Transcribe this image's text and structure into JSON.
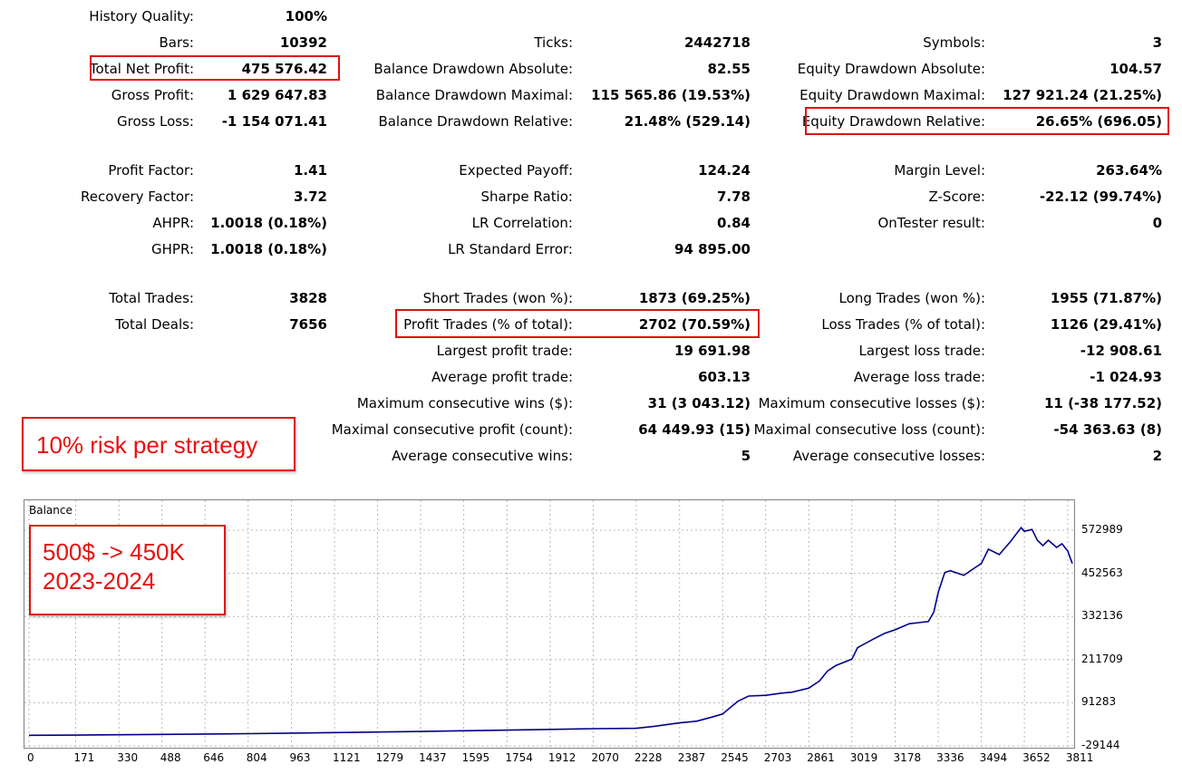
{
  "report": {
    "col1": [
      {
        "label": "History Quality:",
        "value": "100%"
      },
      {
        "label": "Bars:",
        "value": "10392"
      },
      {
        "label": "Total Net Profit:",
        "value": "475 576.42"
      },
      {
        "label": "Gross Profit:",
        "value": "1 629 647.83"
      },
      {
        "label": "Gross Loss:",
        "value": "-1 154 071.41"
      },
      {
        "label": "Profit Factor:",
        "value": "1.41"
      },
      {
        "label": "Recovery Factor:",
        "value": "3.72"
      },
      {
        "label": "AHPR:",
        "value": "1.0018 (0.18%)"
      },
      {
        "label": "GHPR:",
        "value": "1.0018 (0.18%)"
      },
      {
        "label": "Total Trades:",
        "value": "3828"
      },
      {
        "label": "Total Deals:",
        "value": "7656"
      }
    ],
    "col2": [
      {
        "label": "Ticks:",
        "value": "2442718"
      },
      {
        "label": "Balance Drawdown Absolute:",
        "value": "82.55"
      },
      {
        "label": "Balance Drawdown Maximal:",
        "value": "115 565.86 (19.53%)"
      },
      {
        "label": "Balance Drawdown Relative:",
        "value": "21.48% (529.14)"
      },
      {
        "label": "Expected Payoff:",
        "value": "124.24"
      },
      {
        "label": "Sharpe Ratio:",
        "value": "7.78"
      },
      {
        "label": "LR Correlation:",
        "value": "0.84"
      },
      {
        "label": "LR Standard Error:",
        "value": "94 895.00"
      },
      {
        "label": "Short Trades (won %):",
        "value": "1873 (69.25%)"
      },
      {
        "label": "Profit Trades (% of total):",
        "value": "2702 (70.59%)"
      },
      {
        "label": "Largest profit trade:",
        "value": "19 691.98"
      },
      {
        "label": "Average profit trade:",
        "value": "603.13"
      },
      {
        "label": "Maximum consecutive wins ($):",
        "value": "31 (3 043.12)"
      },
      {
        "label": "Maximal consecutive profit (count):",
        "value": "64 449.93 (15)"
      },
      {
        "label": "Average consecutive wins:",
        "value": "5"
      }
    ],
    "col3": [
      {
        "label": "Symbols:",
        "value": "3"
      },
      {
        "label": "Equity Drawdown Absolute:",
        "value": "104.57"
      },
      {
        "label": "Equity Drawdown Maximal:",
        "value": "127 921.24 (21.25%)"
      },
      {
        "label": "Equity Drawdown Relative:",
        "value": "26.65% (696.05)"
      },
      {
        "label": "Margin Level:",
        "value": "263.64%"
      },
      {
        "label": "Z-Score:",
        "value": "-22.12 (99.74%)"
      },
      {
        "label": "OnTester result:",
        "value": "0"
      },
      {
        "label": "Long Trades (won %):",
        "value": "1955 (71.87%)"
      },
      {
        "label": "Loss Trades (% of total):",
        "value": "1126 (29.41%)"
      },
      {
        "label": "Largest loss trade:",
        "value": "-12 908.61"
      },
      {
        "label": "Average loss trade:",
        "value": "-1 024.93"
      },
      {
        "label": "Maximum consecutive losses ($):",
        "value": "11 (-38 177.52)"
      },
      {
        "label": "Maximal consecutive loss (count):",
        "value": "-54 363.63 (8)"
      },
      {
        "label": "Average consecutive losses:",
        "value": "2"
      }
    ]
  },
  "annotations": {
    "risk_note": "10% risk per strategy",
    "growth_line1": "500$ -> 450K",
    "growth_line2": "2023-2024",
    "highlight_color": "#e01010"
  },
  "chart_data": {
    "type": "line",
    "title": "Balance",
    "line_color": "#00008b",
    "grid": true,
    "x_ticks": [
      "0",
      "171",
      "330",
      "488",
      "646",
      "804",
      "963",
      "1121",
      "1279",
      "1437",
      "1595",
      "1754",
      "1912",
      "2070",
      "2228",
      "2387",
      "2545",
      "2703",
      "2861",
      "3019",
      "3178",
      "3336",
      "3494",
      "3652",
      "3811"
    ],
    "y_ticks": [
      "572989",
      "452563",
      "332136",
      "211709",
      "91283",
      "-29144"
    ],
    "ylim": [
      -29144,
      600000
    ],
    "xlim": [
      0,
      3828
    ],
    "series": [
      {
        "x": [
          0,
          171,
          330,
          488,
          646,
          804,
          963,
          1121,
          1279,
          1437,
          1595,
          1754,
          1912,
          2070,
          2228,
          2290,
          2387,
          2450,
          2500,
          2545,
          2600,
          2640,
          2703,
          2760,
          2800,
          2861,
          2900,
          2930,
          2960,
          3019,
          3040,
          3100,
          3140,
          3178,
          3230,
          3300,
          3320,
          3336,
          3360,
          3380,
          3430,
          3470,
          3494,
          3520,
          3560,
          3600,
          3640,
          3652,
          3680,
          3700,
          3720,
          3740,
          3770,
          3790,
          3811,
          3828
        ],
        "y": [
          500,
          1000,
          2000,
          3000,
          4000,
          5000,
          6500,
          8000,
          9500,
          11000,
          13000,
          15000,
          17000,
          19000,
          20000,
          25000,
          35000,
          40000,
          50000,
          60000,
          95000,
          110000,
          112000,
          118000,
          121000,
          132000,
          152000,
          180000,
          195000,
          213000,
          245000,
          270000,
          285000,
          295000,
          312000,
          318000,
          345000,
          400000,
          455000,
          460000,
          447000,
          468000,
          480000,
          520000,
          505000,
          540000,
          580000,
          570000,
          575000,
          545000,
          530000,
          545000,
          525000,
          535000,
          515000,
          480000
        ]
      }
    ]
  }
}
